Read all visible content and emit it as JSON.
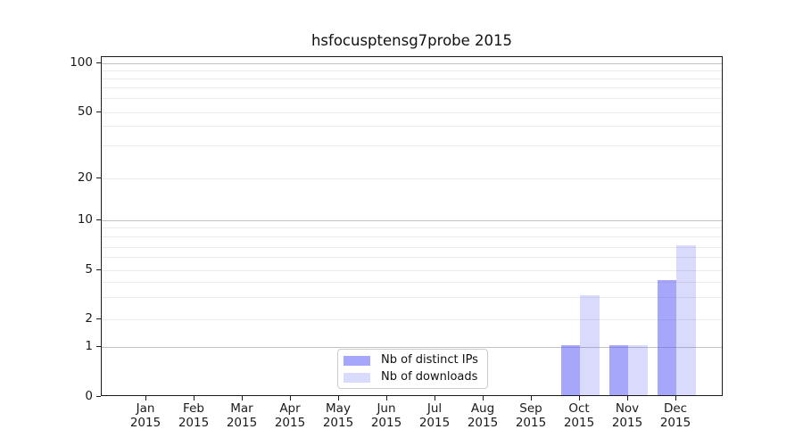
{
  "title": "hsfocusptensg7probe 2015",
  "legend": {
    "items": [
      {
        "label": "Nb of distinct IPs",
        "color": "rgba(85,85,245,0.52)"
      },
      {
        "label": "Nb of downloads",
        "color": "rgba(85,85,245,0.22)"
      }
    ]
  },
  "chart_data": {
    "type": "bar",
    "title": "hsfocusptensg7probe 2015",
    "year": "2015",
    "months": [
      "Jan",
      "Feb",
      "Mar",
      "Apr",
      "May",
      "Jun",
      "Jul",
      "Aug",
      "Sep",
      "Oct",
      "Nov",
      "Dec"
    ],
    "series": [
      {
        "name": "Nb of distinct IPs",
        "color": "rgba(85,85,245,0.52)",
        "values": [
          0,
          0,
          0,
          0,
          0,
          0,
          0,
          0,
          0,
          1,
          1,
          4
        ]
      },
      {
        "name": "Nb of downloads",
        "color": "rgba(85,85,245,0.22)",
        "values": [
          0,
          0,
          0,
          0,
          0,
          0,
          0,
          0,
          0,
          3,
          1,
          7
        ]
      }
    ],
    "yscale": "symlog",
    "ylim": [
      0,
      100
    ],
    "y_ticks": [
      0,
      1,
      2,
      5,
      10,
      20,
      50,
      100
    ],
    "y_minor_gridlines": [
      2,
      3,
      4,
      5,
      6,
      7,
      8,
      9,
      20,
      30,
      40,
      50,
      60,
      70,
      80,
      90
    ],
    "y_major_gridlines": [
      1,
      10,
      100
    ],
    "grid": "on",
    "legend_position": "inside lower center"
  }
}
